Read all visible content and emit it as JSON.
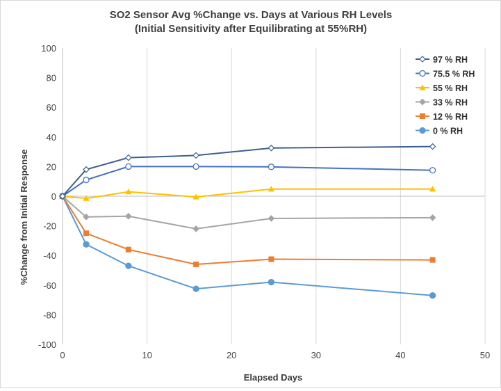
{
  "chart_data": {
    "type": "line",
    "title": "SO2 Sensor Avg %Change vs. Days at Various RH Levels",
    "subtitle": "(Initial Sensitivity after Equilibrating at 55%RH)",
    "xlabel": "Elapsed Days",
    "ylabel": "%Change  from Initial Response",
    "xlim": [
      0,
      50
    ],
    "ylim": [
      -100,
      100
    ],
    "xticks": [
      0,
      10,
      20,
      30,
      40,
      50
    ],
    "yticks": [
      100,
      80,
      60,
      40,
      20,
      0,
      -20,
      -40,
      -60,
      -80,
      -100
    ],
    "grid": "vertical gridlines",
    "legend_position": "top-right",
    "series": [
      {
        "name": "97 % RH",
        "color": "#3f5f8f",
        "marker": "diamond-open",
        "x": [
          0,
          2.8,
          7.8,
          15.8,
          24.7,
          43.8
        ],
        "y": [
          0,
          18,
          26,
          27.5,
          32.5,
          33.5
        ]
      },
      {
        "name": "75.5 % RH",
        "color": "#4472c4",
        "marker": "circle-open",
        "x": [
          0,
          2.8,
          7.8,
          15.8,
          24.7,
          43.8
        ],
        "y": [
          0,
          11,
          20,
          20,
          19.8,
          17.5
        ]
      },
      {
        "name": "55 % RH",
        "color": "#ffc000",
        "marker": "triangle",
        "x": [
          0,
          2.8,
          7.8,
          15.8,
          24.7,
          43.8
        ],
        "y": [
          0,
          -1.5,
          3,
          -0.5,
          4.8,
          4.8
        ]
      },
      {
        "name": "33 % RH",
        "color": "#a5a5a5",
        "marker": "diamond",
        "x": [
          0,
          2.8,
          7.8,
          15.8,
          24.7,
          43.8
        ],
        "y": [
          0,
          -14,
          -13.5,
          -22,
          -15,
          -14.5
        ]
      },
      {
        "name": "12 % RH",
        "color": "#ed7d31",
        "marker": "square",
        "x": [
          0,
          2.8,
          7.8,
          15.8,
          24.7,
          43.8
        ],
        "y": [
          0,
          -25,
          -36,
          -46,
          -42.5,
          -43
        ]
      },
      {
        "name": "0 % RH",
        "color": "#5b9bd5",
        "marker": "circle",
        "x": [
          0,
          2.8,
          7.8,
          15.8,
          24.7,
          43.8
        ],
        "y": [
          0,
          -32.5,
          -47,
          -62.5,
          -58,
          -67
        ]
      }
    ]
  }
}
